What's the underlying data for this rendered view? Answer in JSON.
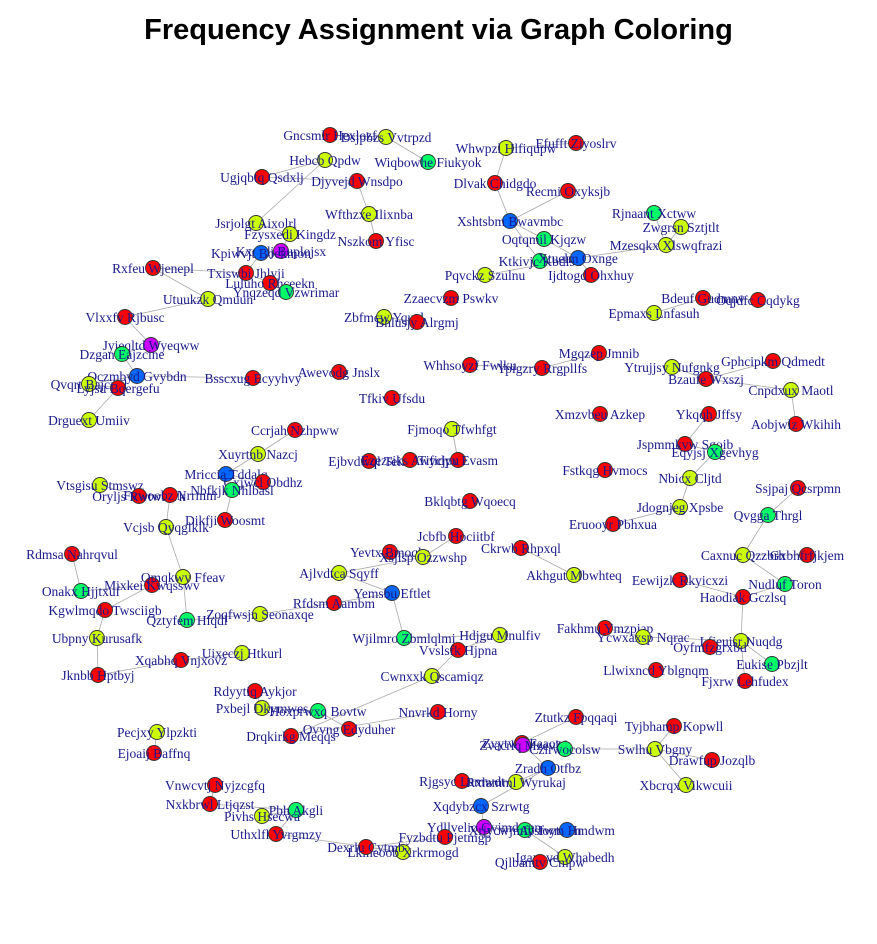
{
  "title": "Frequency Assignment via Graph Coloring",
  "palette": {
    "red": "#ff0000",
    "yellow": "#ccff00",
    "green": "#00ff66",
    "blue": "#0066ff",
    "purple": "#cc00ff"
  },
  "nodes": [
    {
      "id": 0,
      "label": "Gncsmlr Hexlozf",
      "color": "red"
    },
    {
      "id": 1,
      "label": "Dsjpbzs Vvtrpzd",
      "color": "yellow"
    },
    {
      "id": 2,
      "label": "Whwpzl Hlfiqupw",
      "color": "yellow"
    },
    {
      "id": 3,
      "label": "Efufft Ziyoslrv",
      "color": "red"
    },
    {
      "id": 4,
      "label": "Hebcb Qpdw",
      "color": "yellow"
    },
    {
      "id": 5,
      "label": "Wiqbowhe Fiukyok",
      "color": "green"
    },
    {
      "id": 6,
      "label": "Ugjqbtq Qsdxlj",
      "color": "red"
    },
    {
      "id": 7,
      "label": "Djyvejd Wnsdpo",
      "color": "red"
    },
    {
      "id": 8,
      "label": "Dlvak Chidgdo",
      "color": "red"
    },
    {
      "id": 9,
      "label": "Recmi Oxyksjb",
      "color": "red"
    },
    {
      "id": 10,
      "label": "Wfthzxe Ilixnba",
      "color": "yellow"
    },
    {
      "id": 11,
      "label": "Xshtsbm Bwavmbc",
      "color": "blue"
    },
    {
      "id": 12,
      "label": "Rjnaant Xctww",
      "color": "green"
    },
    {
      "id": 13,
      "label": "Zwgrsn Sztjtlt",
      "color": "yellow"
    },
    {
      "id": 14,
      "label": "Jsrjolgt Aixolrl",
      "color": "yellow"
    },
    {
      "id": 15,
      "label": "Fzysxedi Kingdz",
      "color": "yellow"
    },
    {
      "id": 16,
      "label": "Nszkom Yfisc",
      "color": "red"
    },
    {
      "id": 17,
      "label": "Oqtqmil Kjqzw",
      "color": "green"
    },
    {
      "id": 18,
      "label": "Mzesqkx Xlswqfrazi",
      "color": "yellow"
    },
    {
      "id": 19,
      "label": "Kxufdj Buplojsx",
      "color": "purple"
    },
    {
      "id": 20,
      "label": "Kpiwvjt Boekmon",
      "color": "blue"
    },
    {
      "id": 21,
      "label": "Ktkivjc Kbdlsu",
      "color": "green"
    },
    {
      "id": 22,
      "label": "Xtuelm Oxnge",
      "color": "blue"
    },
    {
      "id": 23,
      "label": "Rxfeu Wjenepl",
      "color": "red"
    },
    {
      "id": 24,
      "label": "Txiswbi Jhlyji",
      "color": "red"
    },
    {
      "id": 25,
      "label": "Luluho Rhceekn",
      "color": "red"
    },
    {
      "id": 26,
      "label": "Pqvckz Szulnu",
      "color": "yellow"
    },
    {
      "id": 27,
      "label": "Ijdtogd Ohxhuy",
      "color": "red"
    },
    {
      "id": 28,
      "label": "Ynqzeqd Vzwrimar",
      "color": "green"
    },
    {
      "id": 29,
      "label": "Utuukzk Qmuun",
      "color": "yellow"
    },
    {
      "id": 30,
      "label": "Zzaecvzm Pswkv",
      "color": "red"
    },
    {
      "id": 31,
      "label": "Bdeuf Gudmnv",
      "color": "red"
    },
    {
      "id": 32,
      "label": "Oqjdfc Cqdykg",
      "color": "red"
    },
    {
      "id": 33,
      "label": "Epmaxs Lnfasuh",
      "color": "yellow"
    },
    {
      "id": 34,
      "label": "Vlxxfv Rjbusc",
      "color": "red"
    },
    {
      "id": 35,
      "label": "Zbfmcw Yqual",
      "color": "yellow"
    },
    {
      "id": 36,
      "label": "Bhlusjy Alrgmj",
      "color": "red"
    },
    {
      "id": 37,
      "label": "Jyieqltd Wyeqww",
      "color": "purple"
    },
    {
      "id": 38,
      "label": "Dzgan Eajzcine",
      "color": "green"
    },
    {
      "id": 39,
      "label": "Mgqzep Jmnib",
      "color": "red"
    },
    {
      "id": 40,
      "label": "Whhsoyzf Fwlku",
      "color": "red"
    },
    {
      "id": 41,
      "label": "Ypigzry Rrgpllfs",
      "color": "red"
    },
    {
      "id": 42,
      "label": "Ytrujjsy Nufgnkg",
      "color": "yellow"
    },
    {
      "id": 43,
      "label": "Gphcipkm Qdmedt",
      "color": "red"
    },
    {
      "id": 44,
      "label": "Qczmbyd Gvybdn",
      "color": "blue"
    },
    {
      "id": 45,
      "label": "Qvqrt Bajcxol",
      "color": "yellow"
    },
    {
      "id": 46,
      "label": "Lyjsu Bqergefu",
      "color": "red"
    },
    {
      "id": 47,
      "label": "Bsscxug Ecyyhvy",
      "color": "red"
    },
    {
      "id": 48,
      "label": "Awevodg Jnslx",
      "color": "red"
    },
    {
      "id": 49,
      "label": "Bzaufe Wxszj",
      "color": "red"
    },
    {
      "id": 50,
      "label": "Cnpdxux Maotl",
      "color": "yellow"
    },
    {
      "id": 51,
      "label": "Tfkiv Ufsdu",
      "color": "red"
    },
    {
      "id": 52,
      "label": "Drguext Umiiv",
      "color": "yellow"
    },
    {
      "id": 53,
      "label": "Xmzvbeu Azkep",
      "color": "red"
    },
    {
      "id": 54,
      "label": "Ykqqh Jffsy",
      "color": "red"
    },
    {
      "id": 55,
      "label": "Aobjwlz Wkihih",
      "color": "red"
    },
    {
      "id": 56,
      "label": "Fjmoqo Tfwhfgt",
      "color": "yellow"
    },
    {
      "id": 57,
      "label": "Tifidyx Evasm",
      "color": "red"
    },
    {
      "id": 58,
      "label": "Ccrjah Nzhpww",
      "color": "red"
    },
    {
      "id": 59,
      "label": "Jspmmkvw Sgoib",
      "color": "red"
    },
    {
      "id": 60,
      "label": "Eqyjsj Xgevhyg",
      "color": "green"
    },
    {
      "id": 61,
      "label": "Xuyrtnb Nazcj",
      "color": "yellow"
    },
    {
      "id": 62,
      "label": "Ejbvdwql Teiff",
      "color": "red"
    },
    {
      "id": 63,
      "label": "Ezezsiks Awycjpu",
      "color": "red"
    },
    {
      "id": 64,
      "label": "Fstkqg Hvmocs",
      "color": "red"
    },
    {
      "id": 65,
      "label": "Nbicx Cljtd",
      "color": "yellow"
    },
    {
      "id": 66,
      "label": "Mriccia Tddalq",
      "color": "blue"
    },
    {
      "id": 67,
      "label": "Gxjwcl Obdhz",
      "color": "red"
    },
    {
      "id": 68,
      "label": "Ssjpaj Qcsrpmn",
      "color": "red"
    },
    {
      "id": 69,
      "label": "Vtsgisu Stmswz",
      "color": "yellow"
    },
    {
      "id": 70,
      "label": "Oryljs Rwtwmvk",
      "color": "red"
    },
    {
      "id": 71,
      "label": "Fvwoobz Nrrmm",
      "color": "red"
    },
    {
      "id": 72,
      "label": "Nbfkjk Nhlbasl",
      "color": "green"
    },
    {
      "id": 73,
      "label": "Bklqbtg Wqoecq",
      "color": "red"
    },
    {
      "id": 74,
      "label": "Jdognjeg Xpsbe",
      "color": "yellow"
    },
    {
      "id": 75,
      "label": "Vcjsb Qyqglklk",
      "color": "yellow"
    },
    {
      "id": 76,
      "label": "Dikfji Woosmt",
      "color": "red"
    },
    {
      "id": 77,
      "label": "Qvgga Thrgl",
      "color": "green"
    },
    {
      "id": 78,
      "label": "Eruooyr Pbhxua",
      "color": "red"
    },
    {
      "id": 79,
      "label": "Jcbfb Hociitbf",
      "color": "red"
    },
    {
      "id": 80,
      "label": "Ckrwb Rhpxql",
      "color": "red"
    },
    {
      "id": 81,
      "label": "Rdmsa Nahrqvul",
      "color": "red"
    },
    {
      "id": 82,
      "label": "Yevtx Bmoqks",
      "color": "red"
    },
    {
      "id": 83,
      "label": "Xsjlsp Ozzwshp",
      "color": "yellow"
    },
    {
      "id": 84,
      "label": "Caxnuc Qzzbrh",
      "color": "yellow"
    },
    {
      "id": 85,
      "label": "Gxbhfrfjkjem",
      "color": "red"
    },
    {
      "id": 86,
      "label": "Ajlvdtca Sqyff",
      "color": "yellow"
    },
    {
      "id": 87,
      "label": "Akhgut Mbwhteq",
      "color": "yellow"
    },
    {
      "id": 88,
      "label": "Mixkei Kwqsswv",
      "color": "red"
    },
    {
      "id": 89,
      "label": "Qmqkwy Ffeav",
      "color": "yellow"
    },
    {
      "id": 90,
      "label": "Eewijzk Rkyicxzi",
      "color": "red"
    },
    {
      "id": 91,
      "label": "Nudluf Toron",
      "color": "green"
    },
    {
      "id": 92,
      "label": "Onakx Hjjtxuf",
      "color": "green"
    },
    {
      "id": 93,
      "label": "Yemsbu Eftlet",
      "color": "blue"
    },
    {
      "id": 94,
      "label": "Haodiak Gczlsq",
      "color": "red"
    },
    {
      "id": 95,
      "label": "Kgwlmqdo Twsciigb",
      "color": "red"
    },
    {
      "id": 96,
      "label": "Rfdsm Aambm",
      "color": "red"
    },
    {
      "id": 97,
      "label": "Zoqfwsjn Seonaxqe",
      "color": "yellow"
    },
    {
      "id": 98,
      "label": "Qztyfem Hlqdl",
      "color": "green"
    },
    {
      "id": 99,
      "label": "Fakhmu Ymzpjap",
      "color": "red"
    },
    {
      "id": 100,
      "label": "Wjilmro Zbmlqlmi",
      "color": "green"
    },
    {
      "id": 101,
      "label": "Hdjgu Mnulfiv",
      "color": "yellow"
    },
    {
      "id": 102,
      "label": "Ycwxaxsp Nqrac",
      "color": "yellow"
    },
    {
      "id": 103,
      "label": "Lfjeuisr Nuqdg",
      "color": "yellow"
    },
    {
      "id": 104,
      "label": "Ubpny Kurusafk",
      "color": "yellow"
    },
    {
      "id": 105,
      "label": "Vvslsfk Hjpna",
      "color": "red"
    },
    {
      "id": 106,
      "label": "Oyfmfzgrxbd",
      "color": "red"
    },
    {
      "id": 107,
      "label": "Eukise Pbzjlt",
      "color": "green"
    },
    {
      "id": 108,
      "label": "Uixeczj Htkurl",
      "color": "yellow"
    },
    {
      "id": 109,
      "label": "Xqabhq Vnjxovz",
      "color": "red"
    },
    {
      "id": 110,
      "label": "Jknbb Hptbyj",
      "color": "red"
    },
    {
      "id": 111,
      "label": "Cwnxxk Qscamiqz",
      "color": "yellow"
    },
    {
      "id": 112,
      "label": "Llwixncd Yblgnqm",
      "color": "red"
    },
    {
      "id": 113,
      "label": "Fjxrw Lehfudex",
      "color": "red"
    },
    {
      "id": 114,
      "label": "Rdyytiq Aykjor",
      "color": "red"
    },
    {
      "id": 115,
      "label": "Pxbejl Dkymwes",
      "color": "yellow"
    },
    {
      "id": 116,
      "label": "Hoxprwxq Bovtw",
      "color": "green"
    },
    {
      "id": 117,
      "label": "Drqkirkg Meqqs",
      "color": "red"
    },
    {
      "id": 118,
      "label": "Nnvrkd Horny",
      "color": "red"
    },
    {
      "id": 119,
      "label": "Ovvng Edyduher",
      "color": "red"
    },
    {
      "id": 120,
      "label": "Ztutkz Fpqqaqi",
      "color": "red"
    },
    {
      "id": 121,
      "label": "Pecjxy Ylpzkti",
      "color": "yellow"
    },
    {
      "id": 122,
      "label": "Tyjbhamp Kopwll",
      "color": "red"
    },
    {
      "id": 123,
      "label": "Ejoaij Baffnq",
      "color": "red"
    },
    {
      "id": 124,
      "label": "Zvytwfl Faaoz",
      "color": "red"
    },
    {
      "id": 125,
      "label": "Zvacrlq Mzevkf",
      "color": "purple"
    },
    {
      "id": 126,
      "label": "Czirwocolsw",
      "color": "green"
    },
    {
      "id": 127,
      "label": "Swlhu Vbgny",
      "color": "yellow"
    },
    {
      "id": 128,
      "label": "Drawfup Jozqlb",
      "color": "red"
    },
    {
      "id": 129,
      "label": "Zradh Otfbz",
      "color": "blue"
    },
    {
      "id": 130,
      "label": "Vnwcvtj Nyjzcgfq",
      "color": "red"
    },
    {
      "id": 131,
      "label": "Rjgsyc Lamwdt",
      "color": "red"
    },
    {
      "id": 132,
      "label": "Rxlamml Wyrukaj",
      "color": "yellow"
    },
    {
      "id": 133,
      "label": "Xbcrqx Vikwcuii",
      "color": "yellow"
    },
    {
      "id": 134,
      "label": "Nxkbrwl Ltjqzst",
      "color": "red"
    },
    {
      "id": 135,
      "label": "Pbh Akgli",
      "color": "green"
    },
    {
      "id": 136,
      "label": "Xqdybzcx Szrwtg",
      "color": "blue"
    },
    {
      "id": 137,
      "label": "Pivhs Hsecwa",
      "color": "yellow"
    },
    {
      "id": 138,
      "label": "Ydllvelio Gvjmdwen",
      "color": "purple"
    },
    {
      "id": 139,
      "label": "Xrjycwjmfb Ioytrarn",
      "color": "green"
    },
    {
      "id": 140,
      "label": "Aysfwm Hmdwm",
      "color": "blue"
    },
    {
      "id": 141,
      "label": "Uthxlfl Yvrgmzy",
      "color": "red"
    },
    {
      "id": 142,
      "label": "Fyzbdtu Pjetmgp",
      "color": "red"
    },
    {
      "id": 143,
      "label": "Lkiheoob Xrkrmogd",
      "color": "yellow"
    },
    {
      "id": 144,
      "label": "Dexrlu Cytmb",
      "color": "red"
    },
    {
      "id": 145,
      "label": "Igaxovd Whabedh",
      "color": "yellow"
    },
    {
      "id": 146,
      "label": "Qjlbamtv Cmpw",
      "color": "red"
    }
  ],
  "edges": [
    [
      0,
      1
    ],
    [
      1,
      5
    ],
    [
      2,
      3
    ],
    [
      2,
      8
    ],
    [
      4,
      6
    ],
    [
      6,
      7
    ],
    [
      7,
      10
    ],
    [
      8,
      11
    ],
    [
      9,
      11
    ],
    [
      11,
      17
    ],
    [
      11,
      21
    ],
    [
      12,
      18
    ],
    [
      13,
      18
    ],
    [
      14,
      15
    ],
    [
      14,
      4
    ],
    [
      15,
      19
    ],
    [
      16,
      10
    ],
    [
      17,
      22
    ],
    [
      18,
      22
    ],
    [
      19,
      20
    ],
    [
      20,
      24
    ],
    [
      23,
      24
    ],
    [
      24,
      25
    ],
    [
      25,
      28
    ],
    [
      26,
      22
    ],
    [
      22,
      27
    ],
    [
      29,
      23
    ],
    [
      29,
      34
    ],
    [
      34,
      37
    ],
    [
      37,
      38
    ],
    [
      38,
      44
    ],
    [
      44,
      45
    ],
    [
      45,
      46
    ],
    [
      46,
      52
    ],
    [
      44,
      47
    ],
    [
      31,
      32
    ],
    [
      31,
      33
    ],
    [
      35,
      36
    ],
    [
      40,
      41
    ],
    [
      39,
      41
    ],
    [
      42,
      49
    ],
    [
      43,
      49
    ],
    [
      49,
      50
    ],
    [
      50,
      55
    ],
    [
      54,
      59
    ],
    [
      59,
      60
    ],
    [
      60,
      65
    ],
    [
      65,
      74
    ],
    [
      74,
      78
    ],
    [
      57,
      56
    ],
    [
      57,
      63
    ],
    [
      58,
      61
    ],
    [
      61,
      66
    ],
    [
      66,
      67
    ],
    [
      67,
      72
    ],
    [
      69,
      70
    ],
    [
      70,
      71
    ],
    [
      71,
      75
    ],
    [
      72,
      76
    ],
    [
      75,
      89
    ],
    [
      81,
      92
    ],
    [
      92,
      88
    ],
    [
      88,
      95
    ],
    [
      95,
      104
    ],
    [
      104,
      110
    ],
    [
      110,
      109
    ],
    [
      109,
      108
    ],
    [
      89,
      98
    ],
    [
      98,
      97
    ],
    [
      97,
      96
    ],
    [
      96,
      93
    ],
    [
      93,
      86
    ],
    [
      86,
      83
    ],
    [
      82,
      83
    ],
    [
      79,
      83
    ],
    [
      93,
      100
    ],
    [
      100,
      101
    ],
    [
      101,
      105
    ],
    [
      105,
      111
    ],
    [
      111,
      117
    ],
    [
      117,
      118
    ],
    [
      115,
      116
    ],
    [
      116,
      119
    ],
    [
      114,
      115
    ],
    [
      99,
      102
    ],
    [
      102,
      103
    ],
    [
      103,
      94
    ],
    [
      94,
      91
    ],
    [
      91,
      84
    ],
    [
      84,
      77
    ],
    [
      77,
      68
    ],
    [
      84,
      85
    ],
    [
      103,
      107
    ],
    [
      103,
      113
    ],
    [
      90,
      94
    ],
    [
      80,
      87
    ],
    [
      120,
      124
    ],
    [
      124,
      126
    ],
    [
      125,
      129
    ],
    [
      129,
      132
    ],
    [
      132,
      131
    ],
    [
      126,
      127
    ],
    [
      127,
      122
    ],
    [
      127,
      133
    ],
    [
      128,
      127
    ],
    [
      136,
      138
    ],
    [
      138,
      139
    ],
    [
      139,
      140
    ],
    [
      139,
      145
    ],
    [
      145,
      146
    ],
    [
      136,
      129
    ],
    [
      130,
      134
    ],
    [
      134,
      135
    ],
    [
      135,
      137
    ],
    [
      135,
      141
    ],
    [
      141,
      143
    ],
    [
      142,
      144
    ],
    [
      143,
      144
    ],
    [
      121,
      123
    ]
  ]
}
